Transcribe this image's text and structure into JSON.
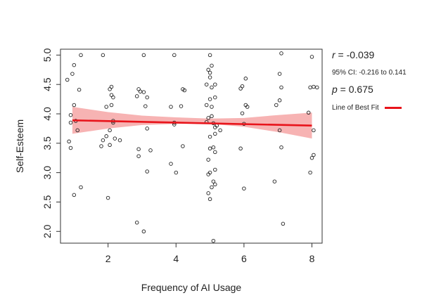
{
  "chart_data": {
    "type": "scatter",
    "xlabel": "Frequency of AI Usage",
    "ylabel": "Self-Esteem",
    "xlim": [
      0.6,
      8.3
    ],
    "ylim": [
      1.8,
      5.1
    ],
    "x_ticks": [
      "2",
      "4",
      "6",
      "8"
    ],
    "y_ticks": [
      "2.0",
      "2.5",
      "3.0",
      "3.5",
      "4.0",
      "4.5",
      "5.0"
    ],
    "points": [
      [
        1.2,
        5.0
      ],
      [
        1.85,
        5.0
      ],
      [
        3.05,
        5.0
      ],
      [
        3.95,
        5.0
      ],
      [
        5.0,
        5.0
      ],
      [
        7.1,
        5.03
      ],
      [
        8.0,
        4.97
      ],
      [
        1.0,
        4.83
      ],
      [
        0.95,
        4.68
      ],
      [
        0.8,
        4.58
      ],
      [
        1.15,
        4.41
      ],
      [
        2.05,
        4.42
      ],
      [
        2.1,
        4.46
      ],
      [
        2.1,
        4.32
      ],
      [
        2.15,
        4.28
      ],
      [
        2.9,
        4.42
      ],
      [
        2.95,
        4.38
      ],
      [
        3.05,
        4.37
      ],
      [
        4.2,
        4.42
      ],
      [
        4.25,
        4.4
      ],
      [
        4.95,
        4.75
      ],
      [
        5.0,
        4.7
      ],
      [
        5.05,
        4.82
      ],
      [
        5.0,
        4.62
      ],
      [
        4.9,
        4.5
      ],
      [
        5.05,
        4.45
      ],
      [
        5.15,
        4.5
      ],
      [
        5.9,
        4.43
      ],
      [
        5.95,
        4.47
      ],
      [
        6.05,
        4.6
      ],
      [
        7.1,
        4.45
      ],
      [
        7.05,
        4.68
      ],
      [
        7.95,
        4.45
      ],
      [
        8.05,
        4.46
      ],
      [
        8.15,
        4.45
      ],
      [
        1.0,
        4.15
      ],
      [
        0.9,
        3.98
      ],
      [
        1.95,
        4.12
      ],
      [
        2.1,
        4.15
      ],
      [
        2.85,
        4.3
      ],
      [
        3.15,
        4.28
      ],
      [
        3.1,
        4.13
      ],
      [
        3.85,
        4.12
      ],
      [
        4.15,
        4.13
      ],
      [
        4.9,
        4.15
      ],
      [
        5.0,
        4.25
      ],
      [
        5.15,
        4.28
      ],
      [
        5.05,
        4.12
      ],
      [
        6.05,
        4.15
      ],
      [
        6.1,
        4.12
      ],
      [
        5.95,
        4.01
      ],
      [
        6.95,
        4.15
      ],
      [
        7.05,
        4.23
      ],
      [
        7.9,
        4.02
      ],
      [
        0.9,
        3.85
      ],
      [
        1.05,
        3.88
      ],
      [
        1.1,
        3.72
      ],
      [
        2.15,
        3.88
      ],
      [
        2.15,
        3.85
      ],
      [
        2.05,
        3.72
      ],
      [
        2.2,
        3.58
      ],
      [
        2.35,
        3.55
      ],
      [
        1.85,
        3.55
      ],
      [
        1.95,
        3.62
      ],
      [
        3.15,
        3.75
      ],
      [
        3.95,
        3.85
      ],
      [
        3.95,
        3.82
      ],
      [
        4.9,
        3.86
      ],
      [
        4.95,
        3.93
      ],
      [
        5.05,
        3.96
      ],
      [
        5.1,
        3.84
      ],
      [
        5.15,
        3.77
      ],
      [
        5.2,
        3.8
      ],
      [
        5.3,
        3.72
      ],
      [
        5.0,
        3.61
      ],
      [
        5.15,
        3.66
      ],
      [
        6.0,
        3.83
      ],
      [
        7.05,
        3.72
      ],
      [
        8.05,
        3.72
      ],
      [
        0.85,
        3.53
      ],
      [
        0.9,
        3.42
      ],
      [
        1.8,
        3.45
      ],
      [
        2.05,
        3.47
      ],
      [
        2.9,
        3.4
      ],
      [
        3.25,
        3.38
      ],
      [
        4.2,
        3.45
      ],
      [
        5.0,
        3.41
      ],
      [
        5.15,
        3.35
      ],
      [
        5.1,
        3.43
      ],
      [
        5.9,
        3.41
      ],
      [
        7.1,
        3.43
      ],
      [
        2.9,
        3.28
      ],
      [
        3.15,
        3.02
      ],
      [
        4.0,
        3.0
      ],
      [
        3.85,
        3.15
      ],
      [
        4.95,
        3.22
      ],
      [
        5.0,
        3.0
      ],
      [
        4.95,
        2.97
      ],
      [
        5.15,
        3.05
      ],
      [
        5.1,
        2.85
      ],
      [
        5.15,
        2.8
      ],
      [
        5.05,
        2.75
      ],
      [
        4.95,
        2.65
      ],
      [
        5.0,
        2.55
      ],
      [
        6.0,
        2.73
      ],
      [
        6.9,
        2.85
      ],
      [
        7.95,
        3.0
      ],
      [
        8.05,
        3.3
      ],
      [
        8.0,
        3.25
      ],
      [
        1.2,
        2.75
      ],
      [
        1.0,
        2.62
      ],
      [
        2.0,
        2.57
      ],
      [
        2.85,
        2.15
      ],
      [
        3.05,
        2.0
      ],
      [
        7.15,
        2.13
      ],
      [
        5.1,
        1.84
      ]
    ],
    "fit": {
      "x": [
        0.95,
        8.0
      ],
      "y": [
        3.89,
        3.8
      ]
    },
    "ci_band": {
      "x": [
        0.95,
        2.0,
        3.0,
        4.0,
        4.5,
        5.0,
        6.0,
        7.0,
        8.0
      ],
      "lower": [
        3.66,
        3.75,
        3.81,
        3.83,
        3.84,
        3.83,
        3.78,
        3.69,
        3.58
      ],
      "upper": [
        4.12,
        4.03,
        3.97,
        3.94,
        3.93,
        3.92,
        3.93,
        3.98,
        4.02
      ]
    }
  },
  "stats": {
    "r_label": "r",
    "r_value": " = -0.039",
    "ci": "95% CI: -0.216 to 0.141",
    "p_label": "p",
    "p_value": " = 0.675"
  },
  "legend": {
    "label": "Line of Best Fit",
    "color": "#e8141b"
  },
  "colors": {
    "band": "#f7b3b3",
    "line": "#e8141b",
    "points": "#222222"
  }
}
